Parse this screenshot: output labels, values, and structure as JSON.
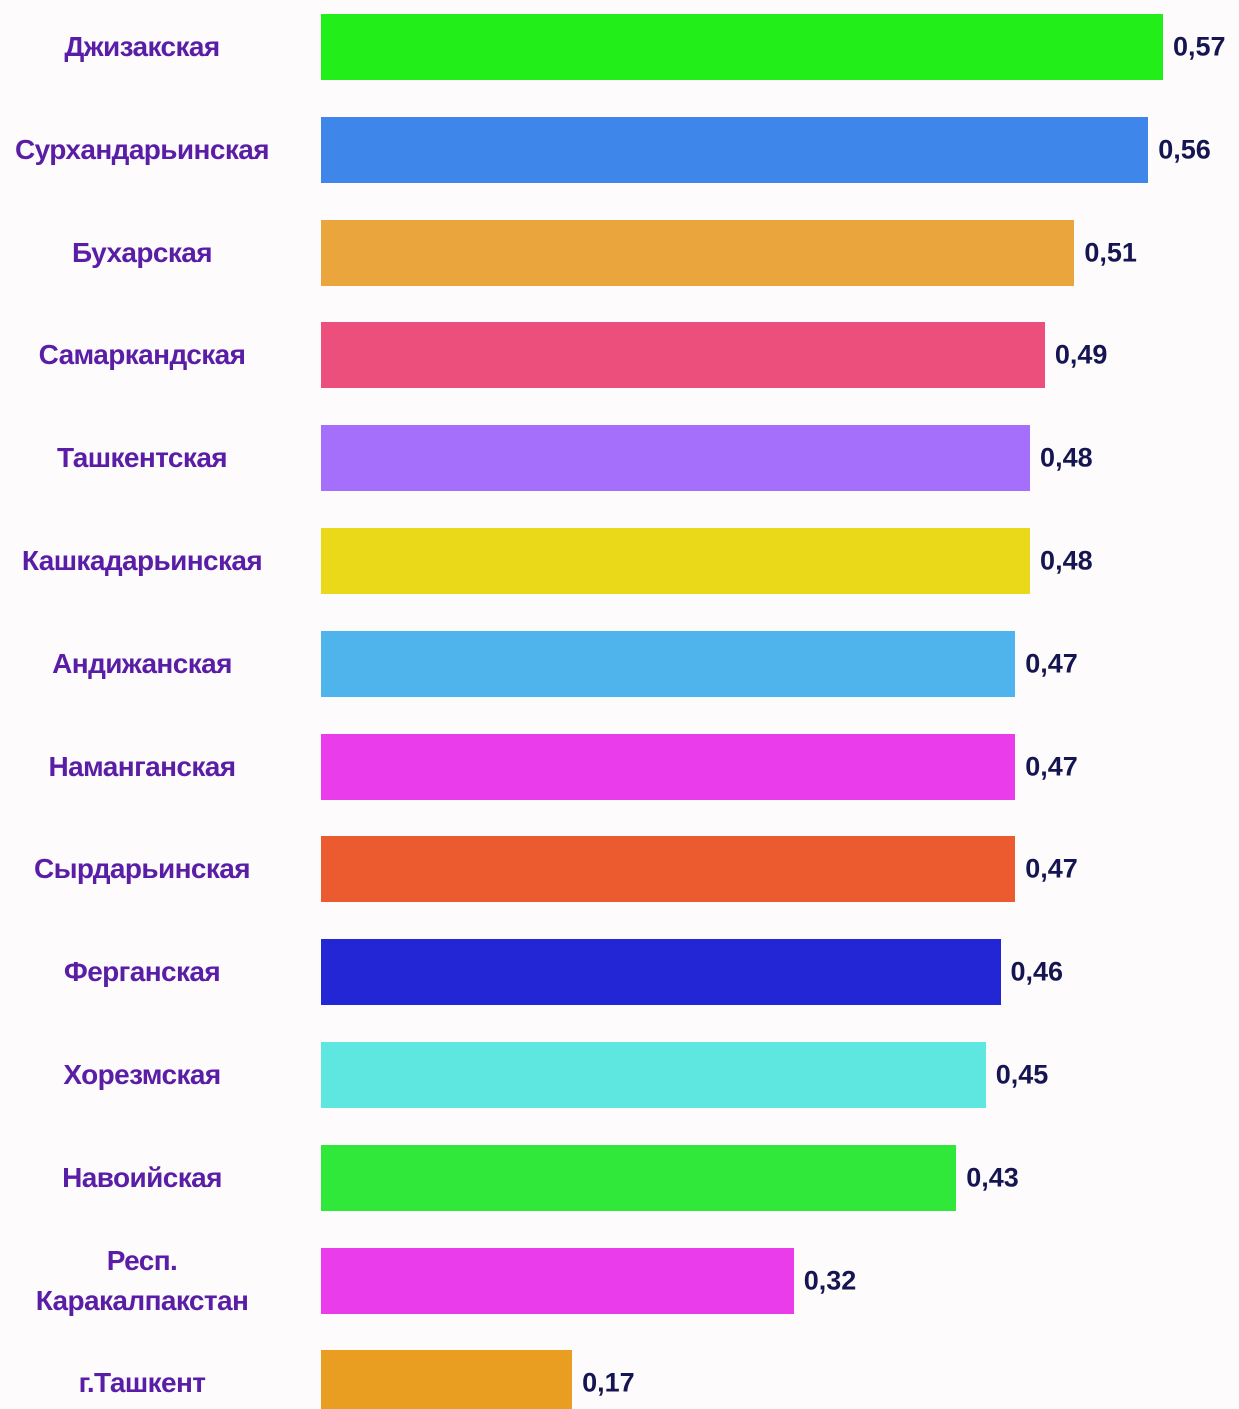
{
  "chart_data": {
    "type": "bar",
    "orientation": "horizontal",
    "categories": [
      "Джизакская",
      "Сурхандарьинская",
      "Бухарская",
      "Самаркандская",
      "Ташкентская",
      "Кашкадарьинская",
      "Андижанская",
      "Наманганская",
      "Сырдарьинская",
      "Ферганская",
      "Хорезмская",
      "Навоийская",
      "Респ.\nКаракалпакстан",
      "г.Ташкент"
    ],
    "values": [
      0.57,
      0.56,
      0.51,
      0.49,
      0.48,
      0.48,
      0.47,
      0.47,
      0.47,
      0.46,
      0.45,
      0.43,
      0.32,
      0.17
    ],
    "value_labels": [
      "0,57",
      "0,56",
      "0,51",
      "0,49",
      "0,48",
      "0,48",
      "0,47",
      "0,47",
      "0,47",
      "0,46",
      "0,45",
      "0,43",
      "0,32",
      "0,17"
    ],
    "colors": [
      "#22ee1a",
      "#3f86ea",
      "#eba53d",
      "#ec4f7b",
      "#a56ffb",
      "#e9d918",
      "#50b4ec",
      "#ea3ceb",
      "#ec5b2f",
      "#2326d5",
      "#5ee6e0",
      "#30e83a",
      "#ea3ceb",
      "#e99e22"
    ]
  }
}
